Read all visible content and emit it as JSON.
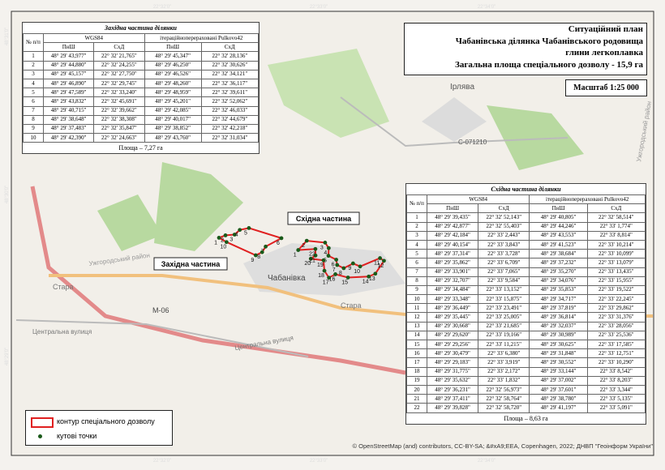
{
  "header": {
    "lines": [
      "Ситуаційний план",
      "Чабанівська ділянка Чабанівського родовища",
      "глини легкоплавка",
      "Загальна площа спеціального дозволу - 15,9 га"
    ],
    "scale": "Масштаб 1:25 000"
  },
  "west_table": {
    "title": "Західна частина ділянки",
    "col_no": "№ п/п",
    "groups": [
      "WGS84",
      "ітераційноперераховані Pulkovo42"
    ],
    "subcols": [
      "ПнШ",
      "СхД",
      "ПнШ",
      "СхД"
    ],
    "rows": [
      [
        "1",
        "48° 29' 43,977\"",
        "22° 32' 21,765\"",
        "48° 29' 45,347\"",
        "22° 32' 28,136\""
      ],
      [
        "2",
        "48° 29' 44,880\"",
        "22° 32' 24,255\"",
        "48° 29' 46,250\"",
        "22° 32' 30,626\""
      ],
      [
        "3",
        "48° 29' 45,157\"",
        "22° 32' 27,750\"",
        "48° 29' 46,526\"",
        "22° 32' 34,121\""
      ],
      [
        "4",
        "48° 29' 46,890\"",
        "22° 32' 29,745\"",
        "48° 29' 48,260\"",
        "22° 32' 36,117\""
      ],
      [
        "5",
        "48° 29' 47,589\"",
        "22° 32' 33,240\"",
        "48° 29' 48,959\"",
        "22° 32' 39,611\""
      ],
      [
        "6",
        "48° 29' 43,832\"",
        "22° 32' 45,691\"",
        "48° 29' 45,201\"",
        "22° 32' 52,062\""
      ],
      [
        "7",
        "48° 29' 40,715\"",
        "22° 32' 39,662\"",
        "48° 29' 42,085\"",
        "22° 32' 46,033\""
      ],
      [
        "8",
        "48° 29' 38,648\"",
        "22° 32' 38,308\"",
        "48° 29' 40,017\"",
        "22° 32' 44,679\""
      ],
      [
        "9",
        "48° 29' 37,483\"",
        "22° 32' 35,847\"",
        "48° 29' 38,852\"",
        "22° 32' 42,218\""
      ],
      [
        "10",
        "48° 29' 42,390\"",
        "22° 32' 24,663\"",
        "48° 29' 43,760\"",
        "22° 32' 31,034\""
      ]
    ],
    "area": "Площа – 7,27 га"
  },
  "east_table": {
    "title": "Східна частина ділянки",
    "col_no": "№ п/п",
    "groups": [
      "WGS84",
      "ітераційноперераховані Pulkovo42"
    ],
    "subcols": [
      "ПнШ",
      "СхД",
      "ПнШ",
      "СхД"
    ],
    "rows": [
      [
        "1",
        "48° 29' 39,435\"",
        "22° 32' 52,143\"",
        "48° 29' 40,805\"",
        "22° 32' 58,514\""
      ],
      [
        "2",
        "48° 29' 42,877\"",
        "22° 32' 55,403\"",
        "48° 29' 44,246\"",
        "22° 33' 1,774\""
      ],
      [
        "3",
        "48° 29' 42,184\"",
        "22° 33' 2,443\"",
        "48° 29' 43,553\"",
        "22° 33' 8,814\""
      ],
      [
        "4",
        "48° 29' 40,154\"",
        "22° 33' 3,843\"",
        "48° 29' 41,523\"",
        "22° 33' 10,214\""
      ],
      [
        "5",
        "48° 29' 37,314\"",
        "22° 33' 3,728\"",
        "48° 29' 38,684\"",
        "22° 33' 10,099\""
      ],
      [
        "6",
        "48° 29' 35,862\"",
        "22° 33' 6,709\"",
        "48° 29' 37,232\"",
        "22° 33' 13,079\""
      ],
      [
        "7",
        "48° 29' 33,901\"",
        "22° 33' 7,065\"",
        "48° 29' 35,270\"",
        "22° 33' 13,435\""
      ],
      [
        "8",
        "48° 29' 32,707\"",
        "22° 33' 9,584\"",
        "48° 29' 34,076\"",
        "22° 33' 15,955\""
      ],
      [
        "9",
        "48° 29' 34,484\"",
        "22° 33' 13,152\"",
        "48° 29' 35,853\"",
        "22° 33' 19,522\""
      ],
      [
        "10",
        "48° 29' 33,348\"",
        "22° 33' 15,875\"",
        "48° 29' 34,717\"",
        "22° 33' 22,245\""
      ],
      [
        "11",
        "48° 29' 36,449\"",
        "22° 33' 23,491\"",
        "48° 29' 37,819\"",
        "22° 33' 29,862\""
      ],
      [
        "12",
        "48° 29' 35,445\"",
        "22° 33' 25,005\"",
        "48° 29' 36,814\"",
        "22° 33' 31,376\""
      ],
      [
        "13",
        "48° 29' 30,668\"",
        "22° 33' 21,685\"",
        "48° 29' 32,037\"",
        "22° 33' 28,056\""
      ],
      [
        "14",
        "48° 29' 29,620\"",
        "22° 33' 19,166\"",
        "48° 29' 30,989\"",
        "22° 33' 25,536\""
      ],
      [
        "15",
        "48° 29' 29,256\"",
        "22° 33' 11,215\"",
        "48° 29' 30,625\"",
        "22° 33' 17,585\""
      ],
      [
        "16",
        "48° 29' 30,479\"",
        "22° 33' 6,380\"",
        "48° 29' 31,848\"",
        "22° 33' 12,751\""
      ],
      [
        "17",
        "48° 29' 29,183\"",
        "22° 33' 3,919\"",
        "48° 29' 30,552\"",
        "22° 33' 10,290\""
      ],
      [
        "18",
        "48° 29' 31,775\"",
        "22° 33' 2,172\"",
        "48° 29' 33,144\"",
        "22° 33' 8,542\""
      ],
      [
        "19",
        "48° 29' 35,632\"",
        "22° 33' 1,832\"",
        "48° 29' 37,002\"",
        "22° 33' 8,203\""
      ],
      [
        "20",
        "48° 29' 36,231\"",
        "22° 32' 56,973\"",
        "48° 29' 37,601\"",
        "22° 33' 3,344\""
      ],
      [
        "21",
        "48° 29' 37,411\"",
        "22° 32' 58,764\"",
        "48° 29' 38,780\"",
        "22° 33' 5,135\""
      ],
      [
        "22",
        "48° 29' 39,828\"",
        "22° 32' 58,720\"",
        "48° 29' 41,197\"",
        "22° 33' 5,091\""
      ]
    ],
    "area": "Площа – 8,63 га"
  },
  "map_labels": {
    "west_part": "Західна частина",
    "east_part": "Східна частина",
    "village": "Чабанівка",
    "irliava": "Ірлява",
    "road_code": "С-071210",
    "m06": "М-06",
    "stara_1": "Стара",
    "stara_2": "Стара",
    "street_1": "Центральна вулиця",
    "street_2": "Центральна вулиця",
    "district_1": "Ужгородський район",
    "district_2": "Ужгородський район"
  },
  "frame": {
    "top": [
      "22°32'0\"",
      "22°33'0\"",
      "22°34'0\""
    ],
    "bottom": [
      "22°32'0\"",
      "22°33'0\"",
      "22°34'0\""
    ],
    "left": [
      "48°31'0\"",
      "48°30'0\"",
      "48°29'0\""
    ]
  },
  "legend": {
    "outline": "контур спеціального дозволу",
    "points": "кутові точки"
  },
  "attribution": "© OpenStreetMap (and) contributors, CC-BY-SA; &#xA9;EEA, Copenhagen, 2022; ДНВП \"Геоінформ України\""
}
